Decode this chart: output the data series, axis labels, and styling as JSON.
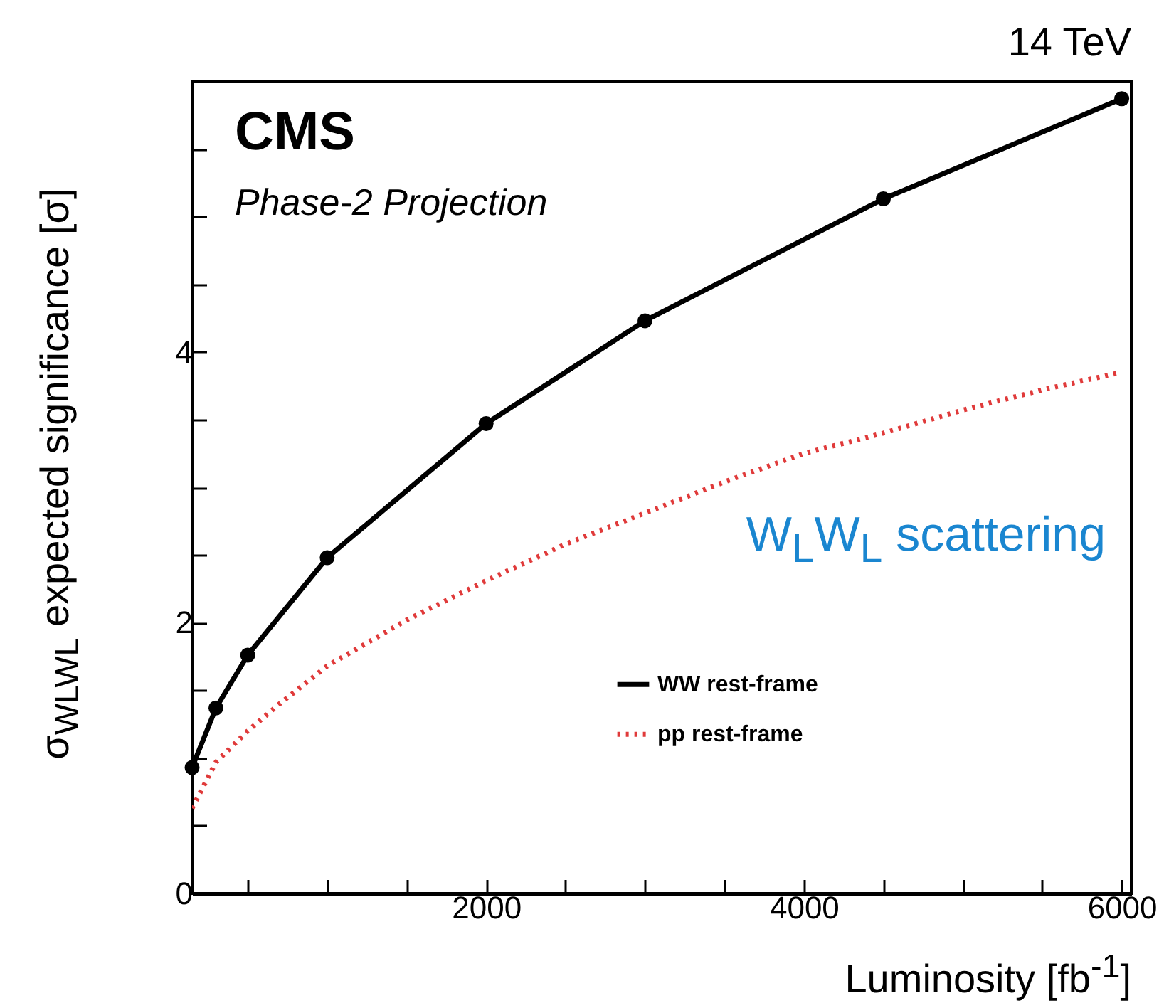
{
  "chart_data": {
    "type": "line",
    "xlabel": "Luminosity [fb$^{-1}$]",
    "ylabel": "σ$_{WLWL}$ expected significance [σ]",
    "annotations": [
      "CMS",
      "Phase-2 Projection",
      "14 TeV",
      "W$_{L}$W$_{L}$ scattering"
    ],
    "xlim": [
      150,
      6060
    ],
    "ylim": [
      0,
      6
    ],
    "xticks": [
      {
        "value": 500,
        "label": null
      },
      {
        "value": 1000,
        "label": null
      },
      {
        "value": 1500,
        "label": null
      },
      2000,
      {
        "value": 2500,
        "label": null
      },
      {
        "value": 3000,
        "label": null
      },
      {
        "value": 3500,
        "label": null
      },
      4000,
      {
        "value": 4500,
        "label": null
      },
      {
        "value": 5000,
        "label": null
      },
      {
        "value": 5500,
        "label": null
      },
      6000
    ],
    "yticks": [
      0,
      {
        "value": 0.5,
        "label": null
      },
      {
        "value": 1,
        "label": null
      },
      {
        "value": 1.5,
        "label": null
      },
      2,
      {
        "value": 2.5,
        "label": null
      },
      {
        "value": 3,
        "label": null
      },
      {
        "value": 3.5,
        "label": null
      },
      4,
      {
        "value": 4.5,
        "label": null
      },
      {
        "value": 5,
        "label": null
      },
      {
        "value": 5.5,
        "label": null
      }
    ],
    "grid": false,
    "legend": "right",
    "series": [
      {
        "name": "WW rest-frame",
        "color": "#000000",
        "marker": "circle",
        "line_style": "solid",
        "x": [
          150,
          300,
          500,
          1000,
          2000,
          3000,
          4500,
          6000
        ],
        "values": [
          0.93,
          1.37,
          1.76,
          2.48,
          3.47,
          4.23,
          5.13,
          5.87
        ]
      },
      {
        "name": "pp rest-frame",
        "color": "#e03a3a",
        "marker": "none",
        "line_style": "dotted",
        "x": [
          150,
          300,
          500,
          700,
          1000,
          1500,
          2000,
          2500,
          3000,
          3500,
          4000,
          4500,
          5000,
          5500,
          6000
        ],
        "values": [
          0.63,
          0.97,
          1.2,
          1.4,
          1.68,
          2.02,
          2.31,
          2.58,
          2.81,
          3.04,
          3.25,
          3.4,
          3.57,
          3.72,
          3.85
        ]
      }
    ]
  }
}
